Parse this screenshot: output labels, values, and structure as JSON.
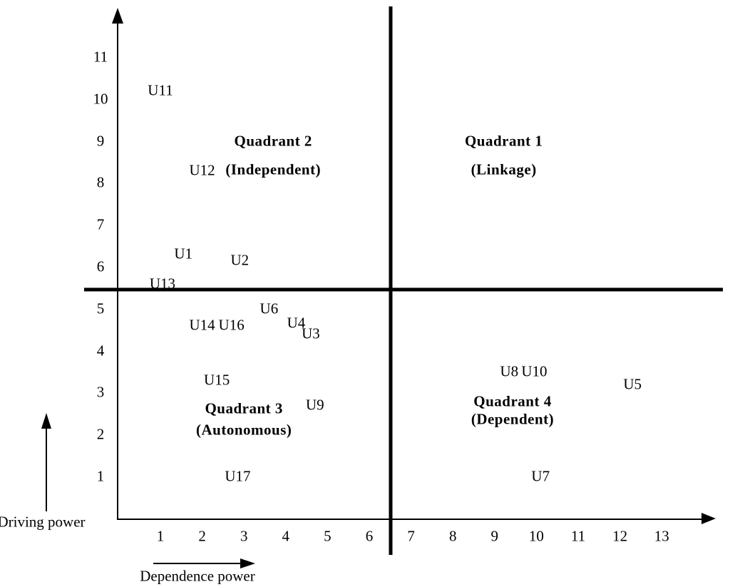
{
  "chart_data": {
    "type": "scatter",
    "title": "",
    "xlabel": "Dependence power",
    "ylabel": "Driving power",
    "xlim": [
      0,
      14
    ],
    "ylim": [
      0,
      12
    ],
    "x_ticks": [
      1,
      2,
      3,
      4,
      5,
      6,
      7,
      8,
      9,
      10,
      11,
      12,
      13
    ],
    "y_ticks": [
      1,
      2,
      3,
      4,
      5,
      6,
      7,
      8,
      9,
      10,
      11
    ],
    "grid": false,
    "divider_x_value": 6.5,
    "divider_y_value": 5.5,
    "points": [
      {
        "label": "U1",
        "x": 1.55,
        "y": 6.3
      },
      {
        "label": "U2",
        "x": 2.9,
        "y": 6.15
      },
      {
        "label": "U3",
        "x": 4.6,
        "y": 4.4
      },
      {
        "label": "U4",
        "x": 4.25,
        "y": 4.65
      },
      {
        "label": "U5",
        "x": 12.3,
        "y": 3.2
      },
      {
        "label": "U6",
        "x": 3.6,
        "y": 5.0
      },
      {
        "label": "U7",
        "x": 10.1,
        "y": 1.0
      },
      {
        "label": "U8",
        "x": 9.35,
        "y": 3.5
      },
      {
        "label": "U9",
        "x": 4.7,
        "y": 2.7
      },
      {
        "label": "U10",
        "x": 9.95,
        "y": 3.5
      },
      {
        "label": "U11",
        "x": 1.0,
        "y": 10.2
      },
      {
        "label": "U12",
        "x": 2.0,
        "y": 8.3
      },
      {
        "label": "U13",
        "x": 1.05,
        "y": 5.6
      },
      {
        "label": "U14",
        "x": 2.0,
        "y": 4.6
      },
      {
        "label": "U15",
        "x": 2.35,
        "y": 3.3
      },
      {
        "label": "U16",
        "x": 2.7,
        "y": 4.6
      },
      {
        "label": "U17",
        "x": 2.85,
        "y": 1.0
      }
    ],
    "quadrant_labels": [
      {
        "title": "Quadrant 1",
        "subtitle": "(Linkage)",
        "x": 9.22,
        "y_title": 9.0,
        "y_subtitle": 8.31
      },
      {
        "title": "Quadrant 2",
        "subtitle": "(Independent)",
        "x": 3.7,
        "y_title": 9.0,
        "y_subtitle": 8.31
      },
      {
        "title": "Quadrant 3",
        "subtitle": "(Autonomous)",
        "x": 3.0,
        "y_title": 2.62,
        "y_subtitle": 2.11
      },
      {
        "title": "Quadrant 4",
        "subtitle": "(Dependent)",
        "x": 9.43,
        "y_title": 2.79,
        "y_subtitle": 2.36
      }
    ],
    "line_color": "#000000",
    "legend": null
  }
}
